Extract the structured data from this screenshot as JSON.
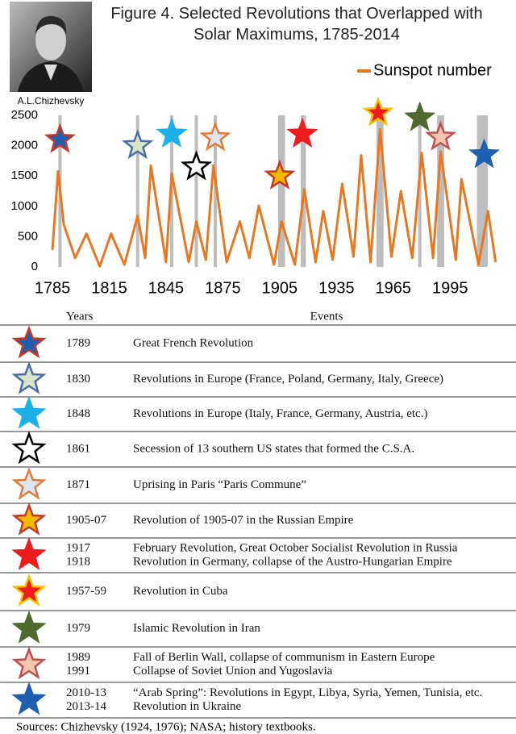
{
  "chart_data": {
    "type": "line",
    "title": "Figure 4. Selected Revolutions that Overlapped with Solar Maximums, 1785-2014",
    "photo_caption": "A.L.Chizhevsky",
    "x": [
      1785,
      1788,
      1791,
      1797,
      1803,
      1810,
      1816,
      1823,
      1830,
      1834,
      1837,
      1845,
      1848,
      1857,
      1861,
      1866,
      1870,
      1877,
      1884,
      1889,
      1894,
      1902,
      1906,
      1913,
      1918,
      1924,
      1928,
      1933,
      1938,
      1944,
      1948,
      1953,
      1958,
      1964,
      1969,
      1975,
      1980,
      1986,
      1990,
      1998,
      2001,
      2010,
      2015,
      2019
    ],
    "series": [
      {
        "name": "Sunspot number",
        "color": "#e87722",
        "values": [
          280,
          1580,
          700,
          150,
          550,
          10,
          550,
          40,
          840,
          150,
          1670,
          80,
          1540,
          80,
          750,
          120,
          1670,
          80,
          750,
          150,
          1010,
          40,
          750,
          40,
          1280,
          80,
          920,
          120,
          1370,
          170,
          1840,
          80,
          2270,
          170,
          1250,
          150,
          1880,
          150,
          1900,
          120,
          1450,
          40,
          920,
          80
        ]
      }
    ],
    "xlim": [
      1785,
      2020
    ],
    "xticks": [
      1785,
      1815,
      1845,
      1875,
      1905,
      1935,
      1965,
      1995
    ],
    "ylim": [
      0,
      2500
    ],
    "yticks": [
      0,
      500,
      1000,
      1500,
      2000,
      2500
    ],
    "shaded_periods": [
      [
        1789,
        1789
      ],
      [
        1830,
        1830
      ],
      [
        1848,
        1848
      ],
      [
        1861,
        1861
      ],
      [
        1871,
        1871
      ],
      [
        1905,
        1907
      ],
      [
        1917,
        1918
      ],
      [
        1957,
        1959
      ],
      [
        1979,
        1979
      ],
      [
        1989,
        1991
      ],
      [
        2010,
        2014
      ]
    ],
    "shade_color": "#bdbdbd",
    "markers": [
      {
        "x": 1789,
        "y": 2100
      },
      {
        "x": 1830,
        "y": 2000
      },
      {
        "x": 1848,
        "y": 2190
      },
      {
        "x": 1861,
        "y": 1650
      },
      {
        "x": 1871,
        "y": 2130
      },
      {
        "x": 1905,
        "y": 1500
      },
      {
        "x": 1917,
        "y": 2190
      },
      {
        "x": 1957,
        "y": 2540
      },
      {
        "x": 1979,
        "y": 2460
      },
      {
        "x": 1990,
        "y": 2140
      },
      {
        "x": 2013,
        "y": 1850
      }
    ],
    "legend": "top-right"
  },
  "table": {
    "headers": [
      "Years",
      "Events"
    ],
    "rows": [
      {
        "star": {
          "fill": "#1f5fb0",
          "stroke": "#c0392b"
        },
        "years": [
          "1789"
        ],
        "events": [
          "Great French Revolution"
        ]
      },
      {
        "star": {
          "fill": "#d9e4c8",
          "stroke": "#4a6fa5"
        },
        "years": [
          "1830"
        ],
        "events": [
          "Revolutions in Europe (France, Poland, Germany, Italy, Greece)"
        ]
      },
      {
        "star": {
          "fill": "#1bb1e7",
          "stroke": "#1bb1e7"
        },
        "years": [
          "1848"
        ],
        "events": [
          "Revolutions in Europe (Italy, France, Germany, Austria, etc.)"
        ]
      },
      {
        "star": {
          "fill": "#ffffff",
          "stroke": "#000000"
        },
        "years": [
          "1861"
        ],
        "events": [
          "Secession of 13 southern US states that formed the C.S.A."
        ]
      },
      {
        "star": {
          "fill": "#dce6f0",
          "stroke": "#e07b39"
        },
        "years": [
          "1871"
        ],
        "events": [
          "Uprising in Paris “Paris Commune”"
        ]
      },
      {
        "star": {
          "fill": "#f5b800",
          "stroke": "#c0392b"
        },
        "years": [
          "1905-07"
        ],
        "events": [
          "Revolution of 1905-07 in the Russian Empire"
        ]
      },
      {
        "star": {
          "fill": "#ee1c1c",
          "stroke": "#ee1c1c"
        },
        "years": [
          "1917",
          "1918"
        ],
        "events": [
          "February Revolution, Great October Socialist Revolution in Russia",
          "Revolution in Germany, collapse of the Austro-Hungarian Empire"
        ]
      },
      {
        "star": {
          "fill": "#ee1c1c",
          "stroke": "#f5c400"
        },
        "years": [
          "1957-59"
        ],
        "events": [
          "Revolution in Cuba"
        ]
      },
      {
        "star": {
          "fill": "#4f6a2e",
          "stroke": "#4f6a2e"
        },
        "years": [
          "1979"
        ],
        "events": [
          "Islamic Revolution in Iran"
        ]
      },
      {
        "star": {
          "fill": "#f4c6b0",
          "stroke": "#c0504d"
        },
        "years": [
          "1989",
          "1991"
        ],
        "events": [
          "Fall of Berlin Wall, collapse of communism in Eastern Europe",
          "Collapse of Soviet Union and Yugoslavia"
        ]
      },
      {
        "star": {
          "fill": "#1f5fb0",
          "stroke": "#1f5fb0"
        },
        "years": [
          "2010-13",
          "2013-14"
        ],
        "events": [
          "“Arab Spring”: Revolutions in Egypt, Libya, Syria, Yemen, Tunisia, etc.",
          "Revolution in Ukraine"
        ]
      }
    ]
  },
  "footer": "Sources: Chizhevsky (1924, 1976); NASA; history textbooks."
}
